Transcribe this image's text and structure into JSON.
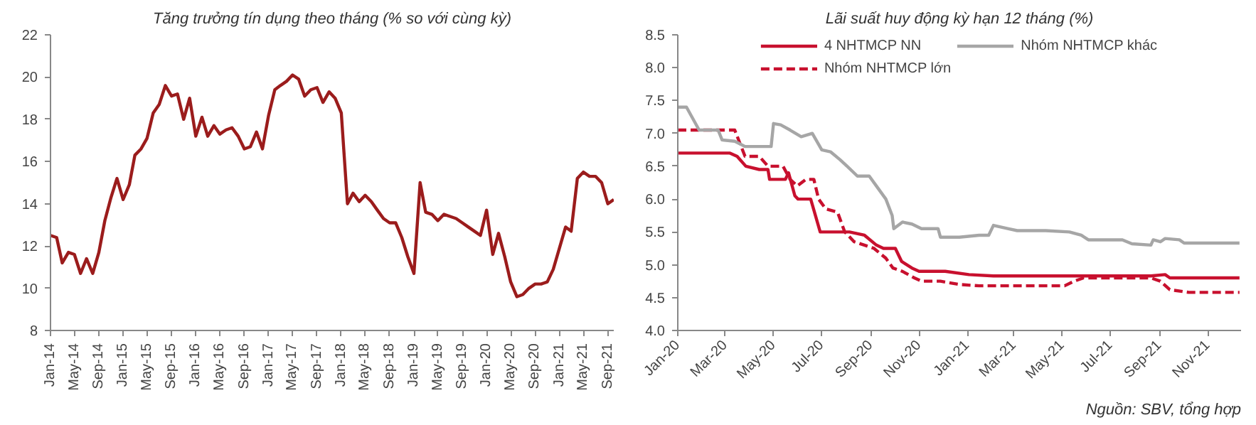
{
  "chart_data": [
    {
      "type": "line",
      "title": "Tăng trưởng tín dụng theo tháng (% so với cùng kỳ)",
      "xlim": [
        "2014-01",
        "2021-10"
      ],
      "ylim": [
        8,
        22
      ],
      "yticks": [
        8,
        10,
        12,
        14,
        16,
        18,
        20,
        22
      ],
      "xticks": [
        {
          "value": "2014-01",
          "label": "Jan-14"
        },
        {
          "value": "2014-05",
          "label": "May-14"
        },
        {
          "value": "2014-09",
          "label": "Sep-14"
        },
        {
          "value": "2015-01",
          "label": "Jan-15"
        },
        {
          "value": "2015-05",
          "label": "May-15"
        },
        {
          "value": "2015-09",
          "label": "Sep-15"
        },
        {
          "value": "2016-01",
          "label": "Jan-16"
        },
        {
          "value": "2016-05",
          "label": "May-16"
        },
        {
          "value": "2016-09",
          "label": "Sep-16"
        },
        {
          "value": "2017-01",
          "label": "Jan-17"
        },
        {
          "value": "2017-05",
          "label": "May-17"
        },
        {
          "value": "2017-09",
          "label": "Sep-17"
        },
        {
          "value": "2018-01",
          "label": "Jan-18"
        },
        {
          "value": "2018-05",
          "label": "May-18"
        },
        {
          "value": "2018-09",
          "label": "Sep-18"
        },
        {
          "value": "2019-01",
          "label": "Jan-19"
        },
        {
          "value": "2019-05",
          "label": "May-19"
        },
        {
          "value": "2019-09",
          "label": "Sep-19"
        },
        {
          "value": "2020-01",
          "label": "Jan-20"
        },
        {
          "value": "2020-05",
          "label": "May-20"
        },
        {
          "value": "2020-09",
          "label": "Sep-20"
        },
        {
          "value": "2021-01",
          "label": "Jan-21"
        },
        {
          "value": "2021-05",
          "label": "May-21"
        },
        {
          "value": "2021-09",
          "label": "Sep-21"
        }
      ],
      "x": [
        "2014-01",
        "2014-02",
        "2014-03",
        "2014-04",
        "2014-05",
        "2014-06",
        "2014-07",
        "2014-08",
        "2014-09",
        "2014-10",
        "2014-11",
        "2014-12",
        "2015-01",
        "2015-02",
        "2015-03",
        "2015-04",
        "2015-05",
        "2015-06",
        "2015-07",
        "2015-08",
        "2015-09",
        "2015-10",
        "2015-11",
        "2015-12",
        "2016-01",
        "2016-02",
        "2016-03",
        "2016-04",
        "2016-05",
        "2016-06",
        "2016-07",
        "2016-08",
        "2016-09",
        "2016-10",
        "2016-11",
        "2016-12",
        "2017-01",
        "2017-02",
        "2017-03",
        "2017-04",
        "2017-05",
        "2017-06",
        "2017-07",
        "2017-08",
        "2017-09",
        "2017-10",
        "2017-11",
        "2017-12",
        "2018-01",
        "2018-02",
        "2018-03",
        "2018-04",
        "2018-05",
        "2018-06",
        "2018-07",
        "2018-08",
        "2018-09",
        "2018-10",
        "2018-11",
        "2018-12",
        "2019-01",
        "2019-02",
        "2019-03",
        "2019-04",
        "2019-05",
        "2019-06",
        "2019-07",
        "2019-08",
        "2019-09",
        "2019-10",
        "2019-11",
        "2019-12",
        "2020-01",
        "2020-02",
        "2020-03",
        "2020-04",
        "2020-05",
        "2020-06",
        "2020-07",
        "2020-08",
        "2020-09",
        "2020-10",
        "2020-11",
        "2020-12",
        "2021-01",
        "2021-02",
        "2021-03",
        "2021-04",
        "2021-05",
        "2021-06",
        "2021-07",
        "2021-08",
        "2021-09",
        "2021-10"
      ],
      "series": [
        {
          "color": "#9b1c1c",
          "values": [
            12.5,
            12.4,
            11.2,
            11.7,
            11.6,
            10.7,
            11.4,
            10.7,
            11.7,
            13.2,
            14.3,
            15.2,
            14.2,
            14.9,
            16.3,
            16.6,
            17.1,
            18.3,
            18.7,
            19.6,
            19.1,
            19.2,
            18.0,
            19.0,
            17.2,
            18.1,
            17.2,
            17.7,
            17.3,
            17.5,
            17.6,
            17.2,
            16.6,
            16.7,
            17.4,
            16.6,
            18.2,
            19.4,
            19.6,
            19.8,
            20.1,
            19.9,
            19.1,
            19.4,
            19.5,
            18.8,
            19.3,
            19.0,
            18.3,
            14.0,
            14.5,
            14.1,
            14.4,
            14.1,
            13.7,
            13.3,
            13.1,
            13.1,
            12.4,
            11.5,
            10.7,
            15.0,
            13.6,
            13.5,
            13.2,
            13.5,
            13.4,
            13.3,
            13.1,
            12.9,
            12.7,
            12.5,
            13.7,
            11.6,
            12.6,
            11.5,
            10.3,
            9.6,
            9.7,
            10.0,
            10.2,
            10.2,
            10.3,
            10.9,
            11.9,
            12.9,
            12.7,
            15.2,
            15.5,
            15.3,
            15.3,
            15.0,
            14.0,
            14.2
          ]
        }
      ]
    },
    {
      "type": "line",
      "title": "Lãi suất huy động kỳ hạn 12 tháng (%)",
      "legend": "top",
      "xlim": [
        "2020-01-01",
        "2021-12-13"
      ],
      "ylim": [
        4,
        8.5
      ],
      "yticks": [
        {
          "value": 4,
          "label": "4.0"
        },
        4.5,
        {
          "value": 5,
          "label": "5.0"
        },
        5.5,
        {
          "value": 6,
          "label": "6.0"
        },
        6.5,
        {
          "value": 7,
          "label": "7.0"
        },
        7.5,
        {
          "value": 8,
          "label": "8.0"
        },
        8.5
      ],
      "xticks": [
        {
          "value": "2020-01-01",
          "label": "Jan-20"
        },
        {
          "value": "2020-03-01",
          "label": "Mar-20"
        },
        {
          "value": "2020-05-01",
          "label": "May-20"
        },
        {
          "value": "2020-07-01",
          "label": "Jul-20"
        },
        {
          "value": "2020-09-01",
          "label": "Sep-20"
        },
        {
          "value": "2020-11-01",
          "label": "Nov-20"
        },
        {
          "value": "2021-01-01",
          "label": "Jan-21"
        },
        {
          "value": "2021-03-01",
          "label": "Mar-21"
        },
        {
          "value": "2021-05-01",
          "label": "May-21"
        },
        {
          "value": "2021-07-01",
          "label": "Jul-21"
        },
        {
          "value": "2021-09-01",
          "label": "Sep-21"
        },
        {
          "value": "2021-11-01",
          "label": "Nov-21"
        }
      ],
      "annotations": [
        "Nguồn: SBV, tổng hợp"
      ],
      "series": [
        {
          "name": "4 NHTMCP NN",
          "color": "#c8102e",
          "x": [
            "2020-01-01",
            "2020-03-07",
            "2020-03-16",
            "2020-03-27",
            "2020-04-13",
            "2020-04-24",
            "2020-04-26",
            "2020-05-16",
            "2020-05-20",
            "2020-05-28",
            "2020-06-01",
            "2020-06-17",
            "2020-06-29",
            "2020-08-05",
            "2020-08-24",
            "2020-09-08",
            "2020-09-17",
            "2020-10-02",
            "2020-10-10",
            "2020-10-23",
            "2020-11-01",
            "2020-12-04",
            "2021-01-03",
            "2021-02-03",
            "2021-08-21",
            "2021-09-08",
            "2021-09-14",
            "2021-12-11"
          ],
          "values": [
            6.7,
            6.7,
            6.65,
            6.5,
            6.45,
            6.45,
            6.3,
            6.3,
            6.4,
            6.05,
            6.0,
            6.0,
            5.5,
            5.5,
            5.45,
            5.3,
            5.25,
            5.25,
            5.05,
            4.95,
            4.9,
            4.9,
            4.85,
            4.83,
            4.83,
            4.85,
            4.8,
            4.8
          ]
        },
        {
          "name": "Nhóm NHTMCP lớn",
          "color": "#c8102e",
          "line_style": "dashed",
          "x": [
            "2020-01-01",
            "2020-03-13",
            "2020-03-26",
            "2020-04-13",
            "2020-04-24",
            "2020-05-13",
            "2020-05-22",
            "2020-05-31",
            "2020-06-11",
            "2020-06-21",
            "2020-06-27",
            "2020-07-06",
            "2020-07-21",
            "2020-07-30",
            "2020-08-11",
            "2020-09-05",
            "2020-09-20",
            "2020-09-29",
            "2020-10-11",
            "2020-10-26",
            "2020-11-04",
            "2020-11-28",
            "2020-12-22",
            "2021-01-16",
            "2021-05-04",
            "2021-05-16",
            "2021-05-28",
            "2021-08-21",
            "2021-09-02",
            "2021-09-14",
            "2021-10-08",
            "2021-12-11"
          ],
          "values": [
            7.05,
            7.05,
            6.65,
            6.65,
            6.5,
            6.5,
            6.3,
            6.2,
            6.3,
            6.3,
            6.0,
            5.85,
            5.8,
            5.5,
            5.35,
            5.25,
            5.1,
            4.95,
            4.9,
            4.8,
            4.75,
            4.75,
            4.7,
            4.68,
            4.68,
            4.75,
            4.8,
            4.8,
            4.75,
            4.62,
            4.58,
            4.58
          ]
        },
        {
          "name": "Nhóm NHTMCP khác",
          "color": "#a6a6a6",
          "x": [
            "2020-01-01",
            "2020-01-12",
            "2020-01-28",
            "2020-02-21",
            "2020-02-26",
            "2020-03-13",
            "2020-03-26",
            "2020-04-28",
            "2020-05-01",
            "2020-05-10",
            "2020-05-22",
            "2020-06-05",
            "2020-06-19",
            "2020-07-01",
            "2020-07-12",
            "2020-07-24",
            "2020-08-02",
            "2020-08-15",
            "2020-08-30",
            "2020-09-08",
            "2020-09-20",
            "2020-09-28",
            "2020-09-30",
            "2020-10-11",
            "2020-10-23",
            "2020-11-04",
            "2020-11-25",
            "2020-11-28",
            "2020-12-22",
            "2021-01-16",
            "2021-01-28",
            "2021-02-03",
            "2021-02-21",
            "2021-03-05",
            "2021-04-10",
            "2021-05-10",
            "2021-05-25",
            "2021-06-03",
            "2021-07-16",
            "2021-07-28",
            "2021-08-21",
            "2021-08-24",
            "2021-09-02",
            "2021-09-08",
            "2021-09-26",
            "2021-10-02",
            "2021-12-11"
          ],
          "values": [
            7.4,
            7.4,
            7.05,
            7.05,
            6.9,
            6.88,
            6.8,
            6.8,
            7.15,
            7.13,
            7.05,
            6.95,
            7.0,
            6.75,
            6.72,
            6.6,
            6.5,
            6.35,
            6.35,
            6.2,
            6.0,
            5.75,
            5.55,
            5.65,
            5.62,
            5.55,
            5.55,
            5.42,
            5.42,
            5.45,
            5.45,
            5.6,
            5.55,
            5.52,
            5.52,
            5.5,
            5.45,
            5.38,
            5.38,
            5.32,
            5.3,
            5.38,
            5.35,
            5.4,
            5.38,
            5.33,
            5.33
          ]
        }
      ]
    }
  ]
}
